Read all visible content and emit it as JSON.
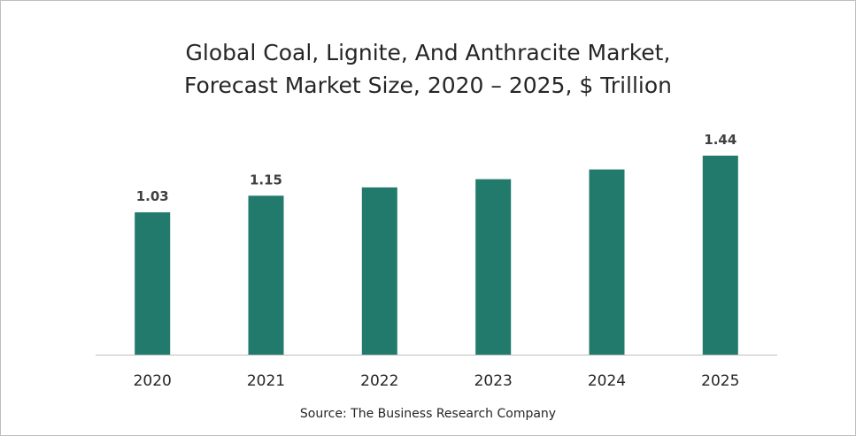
{
  "chart_data": {
    "type": "bar",
    "title_lines": [
      "Global Coal, Lignite, And Anthracite Market,",
      "Forecast Market Size, 2020 – 2025, $ Trillion"
    ],
    "categories": [
      "2020",
      "2021",
      "2022",
      "2023",
      "2024",
      "2025"
    ],
    "values": [
      1.03,
      1.15,
      1.21,
      1.27,
      1.34,
      1.44
    ],
    "data_labels": [
      "1.03",
      "1.15",
      "",
      "",
      "",
      "1.44"
    ],
    "xlabel": "",
    "ylabel": "",
    "ylim": [
      0,
      1.44
    ],
    "grid": false,
    "bar_color": "#217a6b",
    "axis_color": "#bfbfbf"
  },
  "source": "Source: The Business Research Company"
}
